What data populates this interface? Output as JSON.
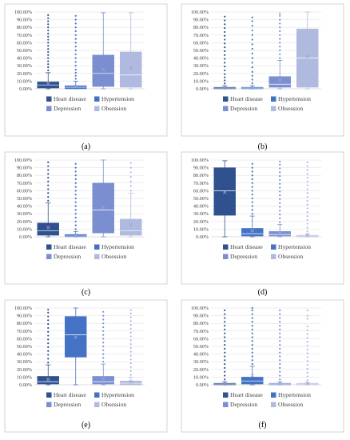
{
  "colors": {
    "series": [
      "#2f528f",
      "#4472c4",
      "#7b8fd0",
      "#b0badf"
    ],
    "median": "#ffffff",
    "mean": "#9aa6d6",
    "outlier": "#2f528f",
    "frame": "#c9c9c9"
  },
  "chart_data": [
    {
      "type": "box",
      "caption": "(a)",
      "ylim": [
        0,
        100
      ],
      "yticks": [
        "0.00%",
        "10.00%",
        "20.00%",
        "30.00%",
        "40.00%",
        "50.00%",
        "60.00%",
        "70.00%",
        "80.00%",
        "90.00%",
        "100.00%"
      ],
      "legend": [
        "Heart disease",
        "Hypertension",
        "Depression",
        "Obsession"
      ],
      "series": [
        {
          "name": "Heart disease",
          "min": 0,
          "q1": 1,
          "median": 5,
          "q3": 9,
          "max": 21,
          "mean": 7,
          "outliers": [
            24,
            28,
            32,
            36,
            40,
            44,
            48,
            52,
            56,
            60,
            64,
            68,
            72,
            76,
            80,
            84,
            88,
            92,
            96
          ]
        },
        {
          "name": "Hypertension",
          "min": 0,
          "q1": 0,
          "median": 2,
          "q3": 4,
          "max": 10,
          "mean": 3,
          "outliers": [
            13,
            17,
            21,
            25,
            30,
            35,
            40,
            45,
            50,
            55,
            60,
            65,
            70,
            75,
            80,
            85,
            90,
            95
          ]
        },
        {
          "name": "Depression",
          "min": 0,
          "q1": 3,
          "median": 20,
          "q3": 44,
          "max": 99,
          "mean": 25,
          "outliers": []
        },
        {
          "name": "Obsession",
          "min": 0,
          "q1": 2,
          "median": 18,
          "q3": 48,
          "max": 99,
          "mean": 27,
          "outliers": []
        }
      ]
    },
    {
      "type": "box",
      "caption": "(b)",
      "ylim": [
        0,
        100
      ],
      "yticks": [
        "0.00%",
        "10.00%",
        "20.00%",
        "30.00%",
        "40.00%",
        "50.00%",
        "60.00%",
        "70.00%",
        "80.00%",
        "90.00%",
        "100.00%"
      ],
      "legend": [
        "Heart disease",
        "Hypertension",
        "Depression",
        "Obsession"
      ],
      "series": [
        {
          "name": "Heart disease",
          "min": 0,
          "q1": 0,
          "median": 1,
          "q3": 2,
          "max": 4,
          "mean": 2,
          "outliers": [
            7,
            11,
            15,
            19,
            24,
            29,
            34,
            39,
            44,
            49,
            54,
            59,
            64,
            69,
            74,
            79,
            84,
            89,
            94
          ]
        },
        {
          "name": "Hypertension",
          "min": 0,
          "q1": 0,
          "median": 1,
          "q3": 2,
          "max": 4,
          "mean": 2,
          "outliers": [
            7,
            12,
            17,
            22,
            28,
            34,
            40,
            46,
            52,
            58,
            64,
            70,
            76,
            82,
            88,
            93
          ]
        },
        {
          "name": "Depression",
          "min": 0,
          "q1": 2,
          "median": 6,
          "q3": 16,
          "max": 37,
          "mean": 11,
          "outliers": [
            40,
            45,
            50,
            55,
            60,
            65,
            70,
            75,
            80,
            85,
            90,
            95,
            98
          ]
        },
        {
          "name": "Obsession",
          "min": 0,
          "q1": 2,
          "median": 40,
          "q3": 78,
          "max": 100,
          "mean": 42,
          "outliers": []
        }
      ]
    },
    {
      "type": "box",
      "caption": "(c)",
      "ylim": [
        0,
        100
      ],
      "yticks": [
        "0.00%",
        "10.00%",
        "20.00%",
        "30.00%",
        "40.00%",
        "50.00%",
        "60.00%",
        "70.00%",
        "80.00%",
        "90.00%",
        "100.00%"
      ],
      "legend": [
        "Heart disease",
        "Hypertension",
        "Depression",
        "Obsession"
      ],
      "series": [
        {
          "name": "Heart disease",
          "min": 0,
          "q1": 2,
          "median": 8,
          "q3": 18,
          "max": 44,
          "mean": 12,
          "outliers": [
            47,
            52,
            57,
            62,
            67,
            72,
            77,
            82,
            87,
            92,
            97
          ]
        },
        {
          "name": "Hypertension",
          "min": 0,
          "q1": 0,
          "median": 1,
          "q3": 3,
          "max": 7,
          "mean": 2,
          "outliers": [
            10,
            15,
            20,
            25,
            30,
            35,
            40,
            45,
            50,
            55,
            60,
            65,
            70,
            75,
            80,
            85,
            90,
            95
          ]
        },
        {
          "name": "Depression",
          "min": 0,
          "q1": 5,
          "median": 35,
          "q3": 70,
          "max": 100,
          "mean": 38,
          "outliers": []
        },
        {
          "name": "Obsession",
          "min": 0,
          "q1": 2,
          "median": 8,
          "q3": 23,
          "max": 57,
          "mean": 16,
          "outliers": [
            60,
            66,
            72,
            78,
            84,
            90,
            96
          ]
        }
      ]
    },
    {
      "type": "box",
      "caption": "(d)",
      "ylim": [
        0,
        100
      ],
      "yticks": [
        "0.00%",
        "10.00%",
        "20.00%",
        "30.00%",
        "40.00%",
        "50.00%",
        "60.00%",
        "70.00%",
        "80.00%",
        "90.00%",
        "100.00%"
      ],
      "legend": [
        "Heart disease",
        "Hypertension",
        "Depression",
        "Obsession"
      ],
      "series": [
        {
          "name": "Heart disease",
          "min": 0,
          "q1": 28,
          "median": 60,
          "q3": 90,
          "max": 99,
          "mean": 58,
          "outliers": []
        },
        {
          "name": "Hypertension",
          "min": 0,
          "q1": 1,
          "median": 4,
          "q3": 11,
          "max": 27,
          "mean": 8,
          "outliers": [
            30,
            35,
            40,
            45,
            50,
            55,
            60,
            65,
            70,
            75,
            80,
            85,
            90,
            95
          ]
        },
        {
          "name": "Depression",
          "min": 0,
          "q1": 1,
          "median": 3,
          "q3": 7,
          "max": 16,
          "mean": 5,
          "outliers": [
            19,
            24,
            29,
            34,
            39,
            44,
            49,
            54,
            59,
            64,
            69,
            74,
            79,
            84,
            89,
            94,
            98
          ]
        },
        {
          "name": "Obsession",
          "min": 0,
          "q1": 0,
          "median": 1,
          "q3": 2,
          "max": 4,
          "mean": 2,
          "outliers": [
            7,
            12,
            17,
            22,
            27,
            32,
            37,
            42,
            47,
            52,
            57,
            62,
            67,
            72,
            77,
            82,
            87,
            92,
            97
          ]
        }
      ]
    },
    {
      "type": "box",
      "caption": "(e)",
      "ylim": [
        0,
        100
      ],
      "yticks": [
        "0.00%",
        "10.00%",
        "20.00%",
        "30.00%",
        "40.00%",
        "50.00%",
        "60.00%",
        "70.00%",
        "80.00%",
        "90.00%",
        "100.00%"
      ],
      "legend": [
        "Heart disease",
        "Hypertension",
        "Depression",
        "Obsession"
      ],
      "series": [
        {
          "name": "Heart disease",
          "min": 0,
          "q1": 1,
          "median": 4,
          "q3": 11,
          "max": 26,
          "mean": 7,
          "outliers": [
            29,
            34,
            39,
            44,
            49,
            54,
            59,
            64,
            69,
            74,
            79,
            84,
            89,
            94,
            98
          ]
        },
        {
          "name": "Hypertension",
          "min": 0,
          "q1": 36,
          "median": 65,
          "q3": 89,
          "max": 100,
          "mean": 62,
          "outliers": []
        },
        {
          "name": "Depression",
          "min": 0,
          "q1": 1,
          "median": 4,
          "q3": 11,
          "max": 27,
          "mean": 8,
          "outliers": [
            30,
            35,
            40,
            45,
            50,
            55,
            60,
            65,
            70,
            75,
            80,
            85,
            90,
            95
          ]
        },
        {
          "name": "Obsession",
          "min": 0,
          "q1": 0,
          "median": 2,
          "q3": 5,
          "max": 10,
          "mean": 4,
          "outliers": [
            13,
            18,
            23,
            28,
            33,
            38,
            43,
            48,
            53,
            58,
            63,
            68,
            73,
            78,
            83,
            88,
            93,
            97
          ]
        }
      ]
    },
    {
      "type": "box",
      "caption": "(f)",
      "ylim": [
        0,
        100
      ],
      "yticks": [
        "0.00%",
        "10.00%",
        "20.00%",
        "30.00%",
        "40.00%",
        "50.00%",
        "60.00%",
        "70.00%",
        "80.00%",
        "90.00%",
        "100.00%"
      ],
      "legend": [
        "Heart disease",
        "Hypertension",
        "Depression",
        "Obsession"
      ],
      "series": [
        {
          "name": "Heart disease",
          "min": 0,
          "q1": 0,
          "median": 1,
          "q3": 2,
          "max": 4,
          "mean": 2,
          "outliers": [
            7,
            12,
            17,
            22,
            27,
            32,
            37,
            42,
            47,
            52,
            57,
            62,
            67,
            72,
            77,
            82,
            87,
            92,
            97
          ]
        },
        {
          "name": "Hypertension",
          "min": 0,
          "q1": 1,
          "median": 5,
          "q3": 10,
          "max": 24,
          "mean": 12,
          "outliers": [
            27,
            32,
            37,
            42,
            47,
            52,
            57,
            62,
            67,
            72,
            77,
            82,
            87,
            92,
            97,
            100
          ]
        },
        {
          "name": "Depression",
          "min": 0,
          "q1": 0,
          "median": 1,
          "q3": 2,
          "max": 4,
          "mean": 2,
          "outliers": [
            7,
            12,
            17,
            22,
            27,
            32,
            37,
            42,
            47,
            52,
            57,
            62,
            67,
            72,
            77,
            82,
            87,
            92,
            97
          ]
        },
        {
          "name": "Obsession",
          "min": 0,
          "q1": 0,
          "median": 1,
          "q3": 2,
          "max": 3,
          "mean": 2,
          "outliers": [
            6,
            11,
            16,
            21,
            26,
            31,
            36,
            41,
            46,
            51,
            56,
            61,
            66,
            71,
            76,
            86,
            90,
            97
          ]
        }
      ]
    }
  ]
}
